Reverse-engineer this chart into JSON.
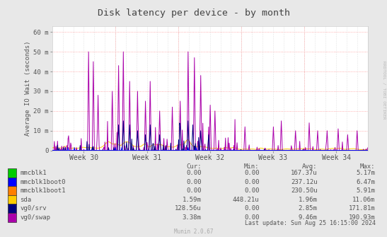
{
  "title": "Disk latency per device - by month",
  "ylabel": "Average IO Wait (seconds)",
  "ytick_labels": [
    "0",
    "10 m",
    "20 m",
    "30 m",
    "40 m",
    "50 m",
    "60 m"
  ],
  "ylim": [
    0,
    63
  ],
  "xtick_labels": [
    "Week 30",
    "Week 31",
    "Week 32",
    "Week 33",
    "Week 34"
  ],
  "bg_color": "#e8e8e8",
  "plot_bg_color": "#ffffff",
  "grid_color_h": "#ff9999",
  "grid_color_v": "#cccccc",
  "title_color": "#555555",
  "watermark": "RRDTOOL / TOBI OETIKER",
  "munin_version": "Munin 2.0.67",
  "last_update": "Last update: Sun Aug 25 16:15:00 2024",
  "legend": [
    {
      "label": "mmcblk1",
      "color": "#00cc00",
      "cur": "0.00",
      "min": "0.00",
      "avg": "167.37u",
      "max": "5.17m"
    },
    {
      "label": "mmcblk1boot0",
      "color": "#0000ff",
      "cur": "0.00",
      "min": "0.00",
      "avg": "237.12u",
      "max": "6.47m"
    },
    {
      "label": "mmcblk1boot1",
      "color": "#ff7f00",
      "cur": "0.00",
      "min": "0.00",
      "avg": "230.50u",
      "max": "5.91m"
    },
    {
      "label": "sda",
      "color": "#ffcc00",
      "cur": "1.59m",
      "min": "448.21u",
      "avg": "1.96m",
      "max": "11.06m"
    },
    {
      "label": "vg0/srv",
      "color": "#00007f",
      "cur": "128.56u",
      "min": "0.00",
      "avg": "2.85m",
      "max": "171.81m"
    },
    {
      "label": "vg0/swap",
      "color": "#aa00aa",
      "cur": "3.38m",
      "min": "0.00",
      "avg": "9.46m",
      "max": "190.93m"
    }
  ],
  "n_points": 600
}
